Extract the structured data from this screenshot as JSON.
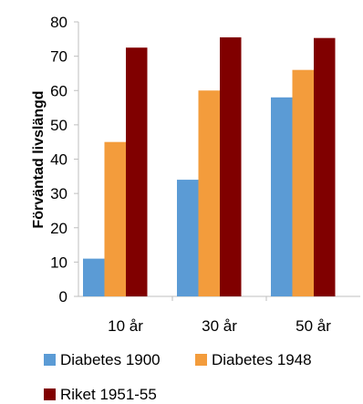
{
  "chart_data": {
    "type": "bar",
    "categories": [
      "10 år",
      "30 år",
      "50 år"
    ],
    "series": [
      {
        "name": "Diabetes 1900",
        "values": [
          11,
          34,
          58
        ],
        "color": "#5b9bd5"
      },
      {
        "name": "Diabetes 1948",
        "values": [
          45,
          60,
          66
        ],
        "color": "#f39c3c"
      },
      {
        "name": "Riket 1951-55",
        "values": [
          72.5,
          75.5,
          75.3
        ],
        "color": "#800000"
      }
    ],
    "ylabel": "Förväntad livslängd",
    "xlabel": "",
    "ylim": [
      0,
      80
    ],
    "yticks": [
      0,
      10,
      20,
      30,
      40,
      50,
      60,
      70,
      80
    ],
    "grid": false,
    "legend_position": "bottom"
  }
}
